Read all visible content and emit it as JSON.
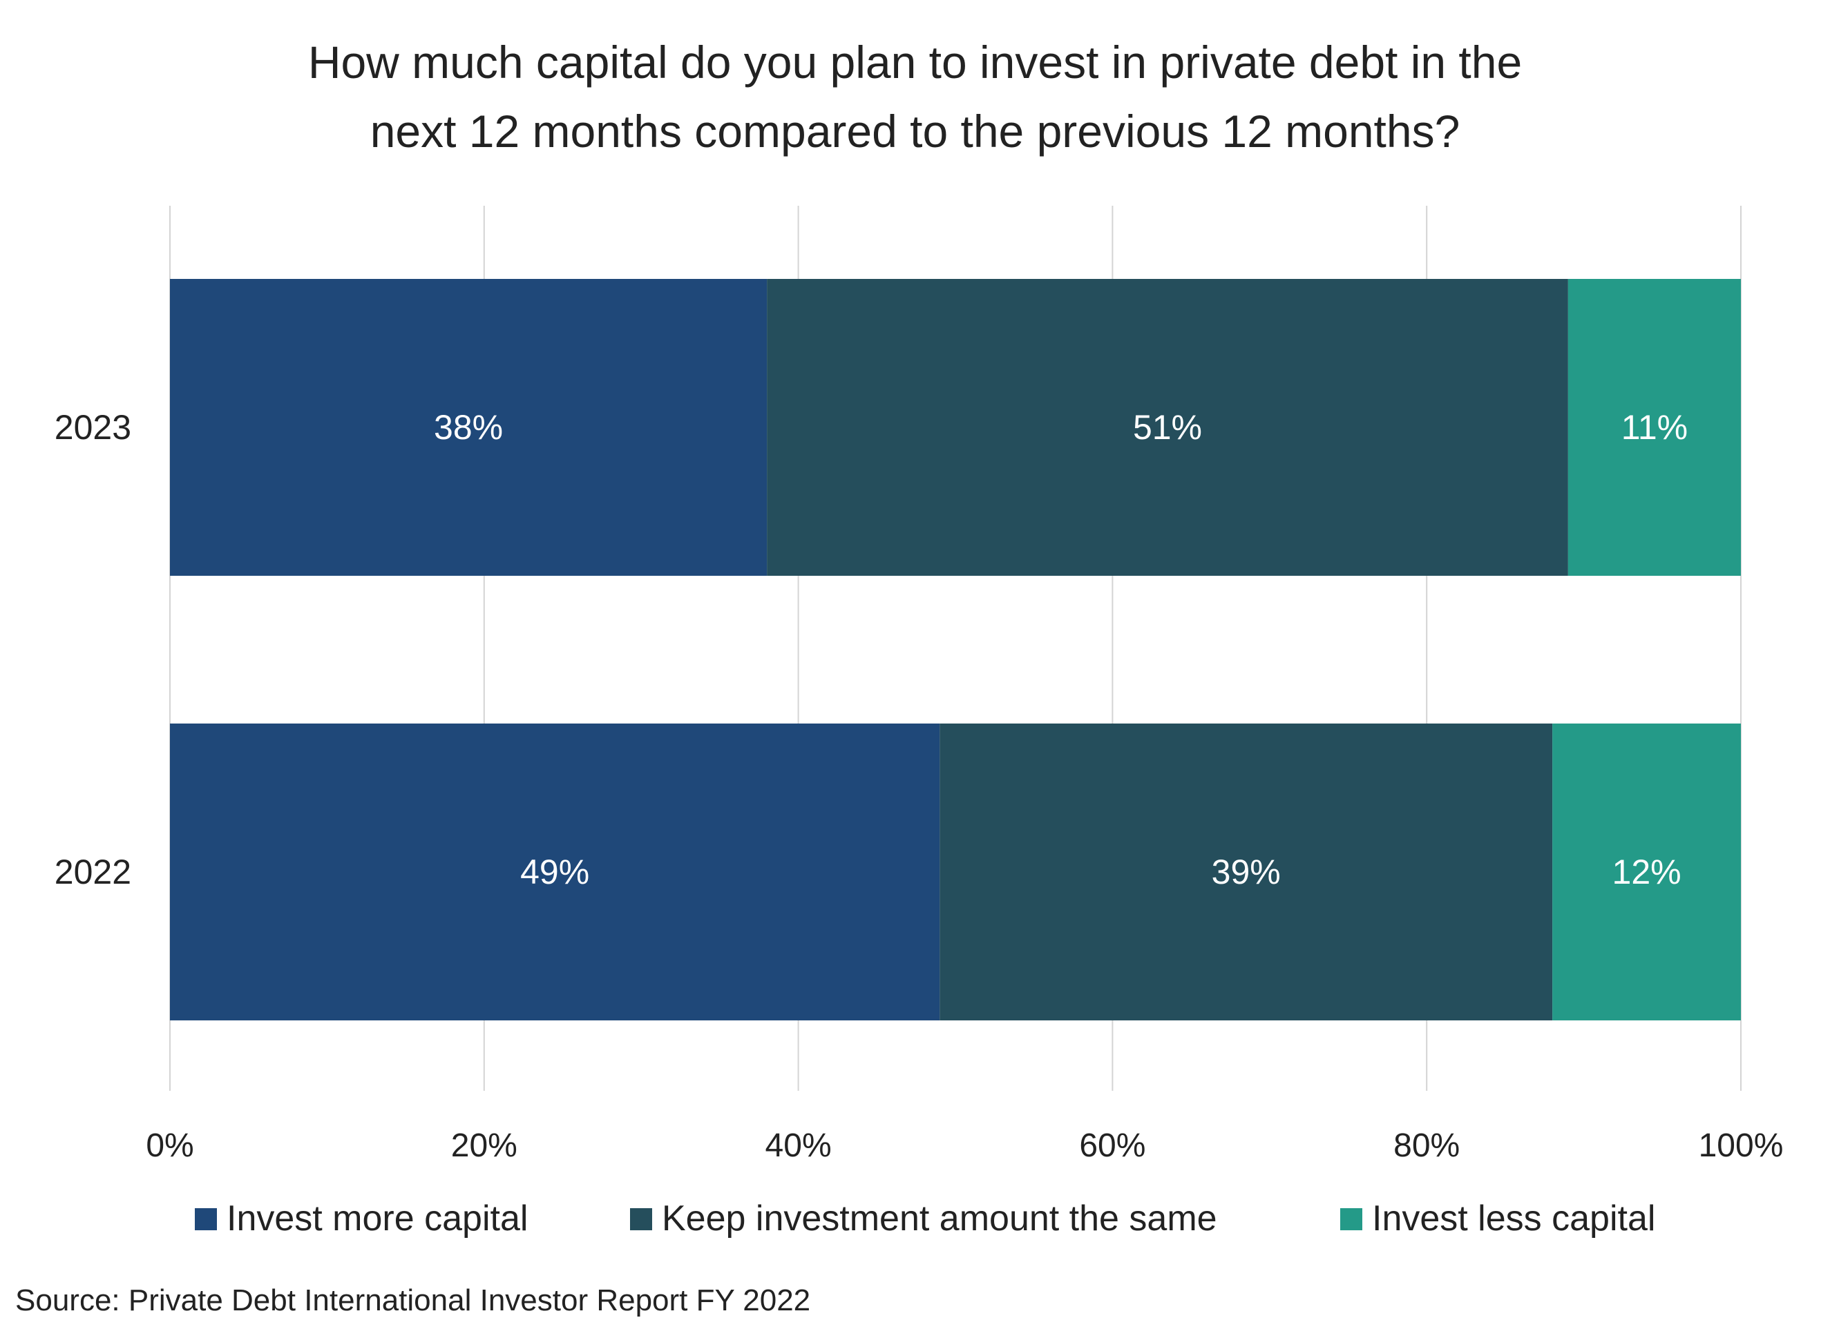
{
  "chart_data": {
    "type": "bar",
    "orientation": "horizontal",
    "stacked": true,
    "title_lines": [
      "How much capital do you plan to invest in private debt in the",
      "next 12 months compared to the previous 12 months?"
    ],
    "categories": [
      "2023",
      "2022"
    ],
    "series": [
      {
        "name": "Invest more capital",
        "values": [
          38,
          49
        ],
        "color": "#1f4879"
      },
      {
        "name": "Keep investment amount the same",
        "values": [
          51,
          39
        ],
        "color": "#254e5c"
      },
      {
        "name": "Invest less capital",
        "values": [
          11,
          12
        ],
        "color": "#249a88"
      }
    ],
    "data_labels": [
      [
        "38%",
        "49%"
      ],
      [
        "51%",
        "39%"
      ],
      [
        "11%",
        "12%"
      ]
    ],
    "x_ticks": [
      "0%",
      "20%",
      "40%",
      "60%",
      "80%",
      "100%"
    ],
    "xlim": [
      0,
      100
    ],
    "grid": true,
    "legend_position": "bottom",
    "source": "Source: Private Debt International Investor Report FY 2022"
  },
  "colors": {
    "grid": "#d4d4d4",
    "text": "#222222",
    "label_text": "#ffffff"
  }
}
